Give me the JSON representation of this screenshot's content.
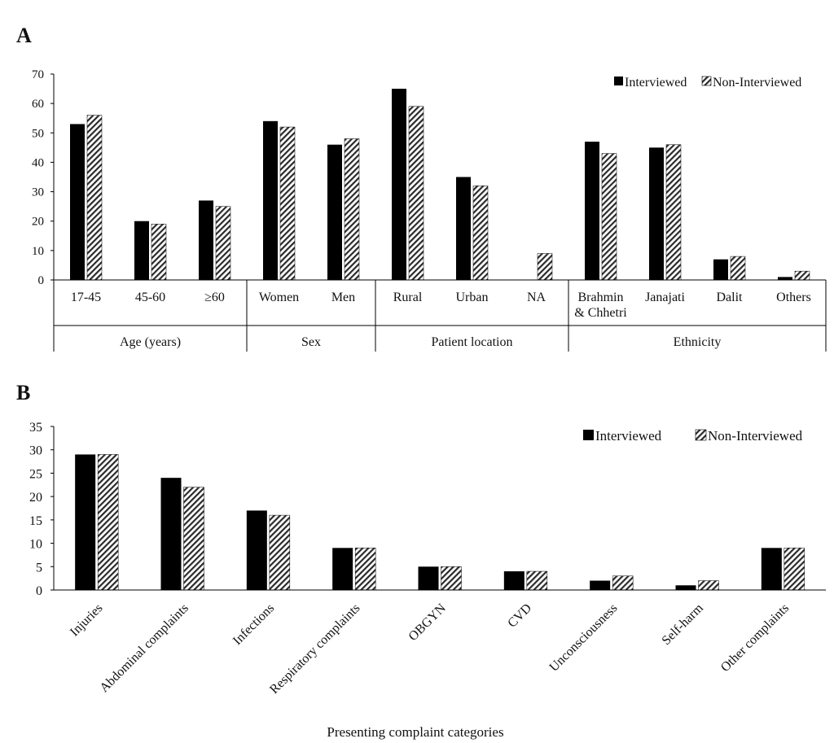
{
  "colors": {
    "interviewed": "#000000",
    "hatch": "#2a2a2a",
    "axis": "#000000"
  },
  "patterns": {
    "interviewed": "solid",
    "non_interviewed": "diagonal-hatch"
  },
  "chart_data": [
    {
      "panel_label": "A",
      "type": "bar",
      "title": "",
      "xlabel": "",
      "ylabel": "",
      "ylim": [
        0,
        70
      ],
      "yticks": [
        0,
        10,
        20,
        30,
        40,
        50,
        60,
        70
      ],
      "grid": false,
      "legend_position": "top-right",
      "categories": [
        "17-45",
        "45-60",
        "≥60",
        "Women",
        "Men",
        "Rural",
        "Urban",
        "NA",
        "Brahmin & Chhetri",
        "Janajati",
        "Dalit",
        "Others"
      ],
      "groups": [
        {
          "label": "Age (years)",
          "count": 3
        },
        {
          "label": "Sex",
          "count": 2
        },
        {
          "label": "Patient location",
          "count": 3
        },
        {
          "label": "Ethnicity",
          "count": 4
        }
      ],
      "series": [
        {
          "name": "Interviewed",
          "values": [
            53,
            20,
            27,
            54,
            46,
            65,
            35,
            0,
            47,
            45,
            7,
            1
          ]
        },
        {
          "name": "Non-Interviewed",
          "values": [
            56,
            19,
            25,
            52,
            48,
            59,
            32,
            9,
            43,
            46,
            8,
            3
          ]
        }
      ]
    },
    {
      "panel_label": "B",
      "type": "bar",
      "title": "",
      "xlabel": "Presenting complaint categories",
      "ylabel": "",
      "ylim": [
        0,
        35
      ],
      "yticks": [
        0,
        5,
        10,
        15,
        20,
        25,
        30,
        35
      ],
      "grid": false,
      "legend_position": "top-right",
      "categories": [
        "Injuries",
        "Abdominal complaints",
        "Infections",
        "Respiratory complaints",
        "OBGYN",
        "CVD",
        "Unconsciousness",
        "Self-harm",
        "Other complaints"
      ],
      "series": [
        {
          "name": "Interviewed",
          "values": [
            29,
            24,
            17,
            9,
            5,
            4,
            2,
            1,
            9
          ]
        },
        {
          "name": "Non-Interviewed",
          "values": [
            29,
            22,
            16,
            9,
            5,
            4,
            3,
            2,
            9
          ]
        }
      ]
    }
  ]
}
